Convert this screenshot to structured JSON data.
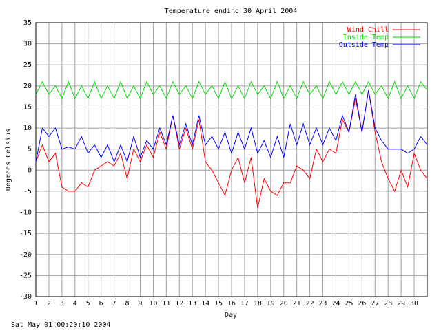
{
  "chart_data": {
    "type": "line",
    "title": "Temperature ending 30 April 2004",
    "xlabel": "Day",
    "ylabel": "Degrees Celsius",
    "footnote": "Sat May 01 00:20:10 2004",
    "grid": true,
    "legend": "top-right",
    "xlim": [
      1,
      31
    ],
    "ylim": [
      -30,
      35
    ],
    "xticks": [
      1,
      2,
      3,
      4,
      5,
      6,
      7,
      8,
      9,
      10,
      11,
      12,
      13,
      14,
      15,
      16,
      17,
      18,
      19,
      20,
      21,
      22,
      23,
      24,
      25,
      26,
      27,
      28,
      29,
      30
    ],
    "yticks": [
      -30,
      -25,
      -20,
      -15,
      -10,
      -5,
      0,
      5,
      10,
      15,
      20,
      25,
      30,
      35
    ],
    "x": [
      1,
      1.5,
      2,
      2.5,
      3,
      3.5,
      4,
      4.5,
      5,
      5.5,
      6,
      6.5,
      7,
      7.5,
      8,
      8.5,
      9,
      9.5,
      10,
      10.5,
      11,
      11.5,
      12,
      12.5,
      13,
      13.5,
      14,
      14.5,
      15,
      15.5,
      16,
      16.5,
      17,
      17.5,
      18,
      18.5,
      19,
      19.5,
      20,
      20.5,
      21,
      21.5,
      22,
      22.5,
      23,
      23.5,
      24,
      24.5,
      25,
      25.5,
      26,
      26.5,
      27,
      27.5,
      28,
      28.5,
      29,
      29.5,
      30,
      30.5,
      31
    ],
    "series": [
      {
        "name": "Wind Chill",
        "color": "#ff0000",
        "values": [
          2,
          6,
          2,
          4,
          -4,
          -5,
          -5,
          -3,
          -4,
          0,
          1,
          2,
          1,
          4,
          -2,
          5,
          2,
          6,
          3,
          9,
          5,
          13,
          5,
          10,
          5,
          12,
          2,
          0,
          -3,
          -6,
          0,
          3,
          -3,
          3,
          -9,
          -2,
          -5,
          -6,
          -3,
          -3,
          1,
          0,
          -2,
          5,
          2,
          5,
          4,
          12,
          9,
          17,
          9,
          19,
          9,
          2,
          -2,
          -5,
          0,
          -4,
          4,
          0,
          -2
        ]
      },
      {
        "name": "Inside Temp",
        "color": "#00dd00",
        "values": [
          18,
          21,
          18,
          20,
          17,
          21,
          17,
          20,
          17,
          21,
          17,
          20,
          17,
          21,
          17,
          20,
          17,
          21,
          18,
          20,
          17,
          21,
          18,
          20,
          17,
          21,
          18,
          20,
          17,
          21,
          17,
          20,
          17,
          21,
          18,
          20,
          17,
          21,
          17,
          20,
          17,
          21,
          18,
          20,
          17,
          21,
          18,
          21,
          18,
          21,
          18,
          21,
          18,
          20,
          17,
          21,
          17,
          20,
          17,
          21,
          19
        ]
      },
      {
        "name": "Outside Temp",
        "color": "#0000ff",
        "values": [
          2,
          10,
          8,
          10,
          5,
          5.5,
          5,
          8,
          4,
          6,
          3,
          6,
          2,
          6,
          2,
          8,
          3,
          7,
          5,
          10,
          6,
          13,
          6,
          11,
          6,
          13,
          6,
          8,
          5,
          9,
          4,
          9,
          5,
          10,
          4,
          7,
          3,
          8,
          3,
          11,
          6,
          11,
          6,
          10,
          6,
          10,
          7,
          13,
          9,
          18,
          9,
          19,
          10,
          7,
          5,
          5,
          5,
          4,
          5,
          8,
          6
        ]
      }
    ]
  }
}
